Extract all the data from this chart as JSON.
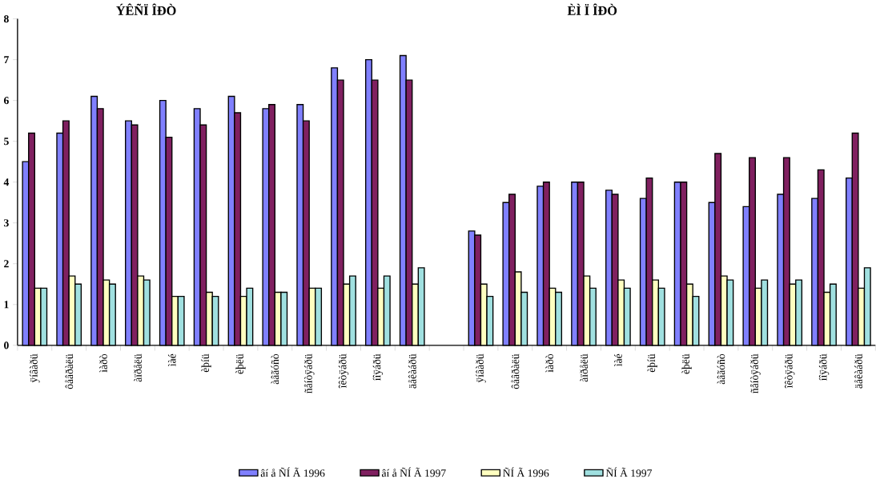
{
  "chart_data": {
    "type": "bar",
    "annotations": [
      "ÝÊÑÏ ÎÐÒ",
      "ÈÌ Ï ÎÐÒ"
    ],
    "categories": [
      "ÿíâàðü",
      "ôåâðàëü",
      "ìàðò",
      "àïðåëü",
      "ìàé",
      "èþíü",
      "èþëü",
      "àâãóñò",
      "ñåíòÿáðü",
      "îêòÿáðü",
      "íîÿáðü",
      "äåêàáðü",
      null,
      "ÿíâàðü",
      "ôåâðàëü",
      "ìàðò",
      "àïðåëü",
      "ìàé",
      "èþíü",
      "èþëü",
      "àâãóñò",
      "ñåíòÿáðü",
      "îêòÿáðü",
      "íîÿáðü",
      "äåêàáðü"
    ],
    "series": [
      {
        "name": "âí å ÑÍ Ã 1996",
        "color": "#8080ff",
        "values": [
          4.5,
          5.2,
          6.1,
          5.5,
          6.0,
          5.8,
          6.1,
          5.8,
          5.9,
          6.8,
          7.0,
          7.1,
          null,
          2.8,
          3.5,
          3.9,
          4.0,
          3.8,
          3.6,
          4.0,
          3.5,
          3.4,
          3.7,
          3.6,
          4.1
        ]
      },
      {
        "name": "âí å ÑÍ Ã 1997",
        "color": "#802060",
        "values": [
          5.2,
          5.5,
          5.8,
          5.4,
          5.1,
          5.4,
          5.7,
          5.9,
          5.5,
          6.5,
          6.5,
          6.5,
          null,
          2.7,
          3.7,
          4.0,
          4.0,
          3.7,
          4.1,
          4.0,
          4.7,
          4.6,
          4.6,
          4.3,
          5.2
        ]
      },
      {
        "name": "ÑÍ Ã 1996",
        "color": "#ffffc0",
        "values": [
          1.4,
          1.7,
          1.6,
          1.7,
          1.2,
          1.3,
          1.2,
          1.3,
          1.4,
          1.5,
          1.4,
          1.5,
          null,
          1.5,
          1.8,
          1.4,
          1.7,
          1.6,
          1.6,
          1.5,
          1.7,
          1.4,
          1.5,
          1.3,
          1.4
        ]
      },
      {
        "name": "ÑÍ Ã 1997",
        "color": "#a0e0e0",
        "values": [
          1.4,
          1.5,
          1.5,
          1.6,
          1.2,
          1.2,
          1.4,
          1.3,
          1.4,
          1.7,
          1.7,
          1.9,
          null,
          1.2,
          1.3,
          1.3,
          1.4,
          1.4,
          1.4,
          1.2,
          1.6,
          1.6,
          1.6,
          1.5,
          1.9
        ]
      }
    ],
    "ylim": [
      0,
      8
    ],
    "yticks": [
      0,
      1,
      2,
      3,
      4,
      5,
      6,
      7,
      8
    ],
    "legend": "bottom"
  }
}
